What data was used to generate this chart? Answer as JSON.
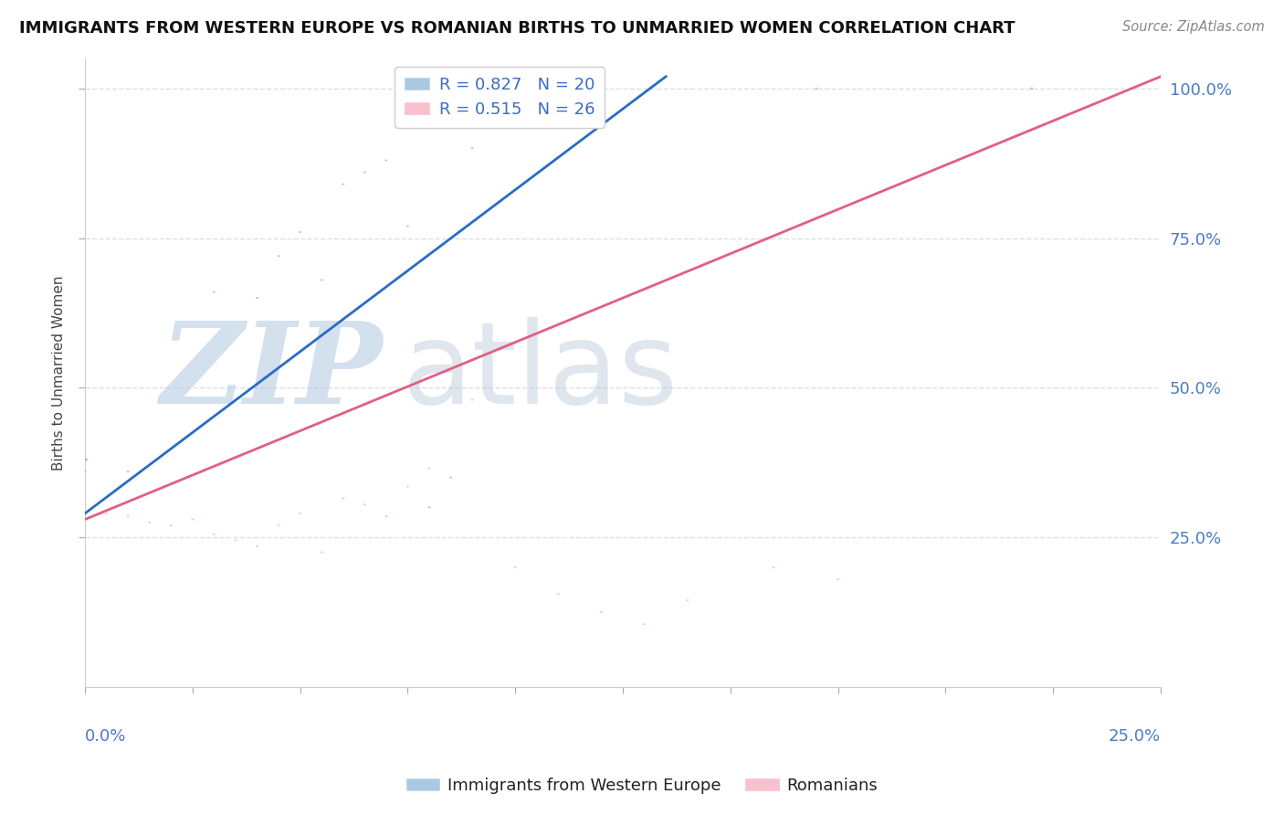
{
  "title": "IMMIGRANTS FROM WESTERN EUROPE VS ROMANIAN BIRTHS TO UNMARRIED WOMEN CORRELATION CHART",
  "source": "Source: ZipAtlas.com",
  "ylabel": "Births to Unmarried Women",
  "legend_label_blue": "Immigrants from Western Europe",
  "legend_label_pink": "Romanians",
  "blue_R": 0.827,
  "blue_N": 20,
  "pink_R": 0.515,
  "pink_N": 26,
  "blue_color": "#7bacd4",
  "pink_color": "#f4a0b5",
  "blue_line_color": "#2a6cc4",
  "pink_line_color": "#e06080",
  "xmin": 0.0,
  "xmax": 0.25,
  "ymin": 0.0,
  "ymax": 1.05,
  "blue_x": [
    0.0,
    0.01,
    0.02,
    0.03,
    0.04,
    0.045,
    0.05,
    0.055,
    0.06,
    0.065,
    0.07,
    0.075,
    0.08,
    0.085,
    0.09,
    0.1,
    0.105,
    0.17,
    0.22,
    0.0
  ],
  "blue_y": [
    0.36,
    0.36,
    0.34,
    0.66,
    0.65,
    0.72,
    0.76,
    0.68,
    0.84,
    0.86,
    0.88,
    0.77,
    0.3,
    0.35,
    0.9,
    0.94,
    0.96,
    1.0,
    1.0,
    0.38
  ],
  "blue_sizes": [
    400,
    400,
    400,
    400,
    400,
    400,
    400,
    400,
    400,
    400,
    400,
    400,
    400,
    400,
    400,
    400,
    400,
    400,
    400,
    3500
  ],
  "pink_x": [
    0.0,
    0.005,
    0.01,
    0.015,
    0.02,
    0.025,
    0.03,
    0.035,
    0.04,
    0.045,
    0.05,
    0.055,
    0.06,
    0.065,
    0.07,
    0.075,
    0.08,
    0.09,
    0.1,
    0.11,
    0.12,
    0.13,
    0.14,
    0.16,
    0.175,
    0.22
  ],
  "pink_y": [
    0.305,
    0.29,
    0.285,
    0.275,
    0.27,
    0.28,
    0.255,
    0.245,
    0.235,
    0.27,
    0.29,
    0.225,
    0.315,
    0.305,
    0.285,
    0.335,
    0.365,
    0.48,
    0.2,
    0.155,
    0.125,
    0.105,
    0.145,
    0.2,
    0.18,
    1.0
  ],
  "pink_sizes": [
    400,
    400,
    400,
    400,
    400,
    400,
    400,
    400,
    400,
    400,
    400,
    400,
    400,
    400,
    400,
    400,
    400,
    400,
    400,
    400,
    400,
    400,
    400,
    400,
    400,
    400
  ],
  "blue_line_x": [
    0.0,
    0.135
  ],
  "blue_line_y": [
    0.29,
    1.02
  ],
  "pink_line_x": [
    0.0,
    0.25
  ],
  "pink_line_y": [
    0.28,
    1.02
  ],
  "ytick_positions": [
    0.25,
    0.5,
    0.75,
    1.0
  ],
  "ytick_labels": [
    "25.0%",
    "50.0%",
    "75.0%",
    "100.0%"
  ],
  "grid_color": "#ddddee",
  "watermark_zip_color": "#b0c8e0",
  "watermark_atlas_color": "#b8c8d8",
  "background": "#ffffff"
}
